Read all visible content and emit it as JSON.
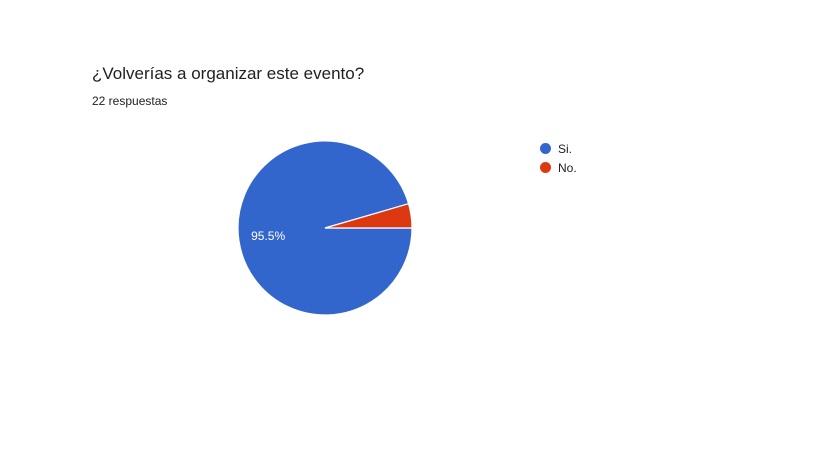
{
  "header": {
    "title": "¿Volverías a organizar este evento?",
    "responses": "22 respuestas"
  },
  "chart_data": {
    "type": "pie",
    "categories": [
      "Si.",
      "No."
    ],
    "values": [
      95.5,
      4.5
    ],
    "data_labels": [
      "95.5%",
      ""
    ],
    "colors": [
      "#3366CC",
      "#DC3912"
    ],
    "legend_position": "right"
  }
}
